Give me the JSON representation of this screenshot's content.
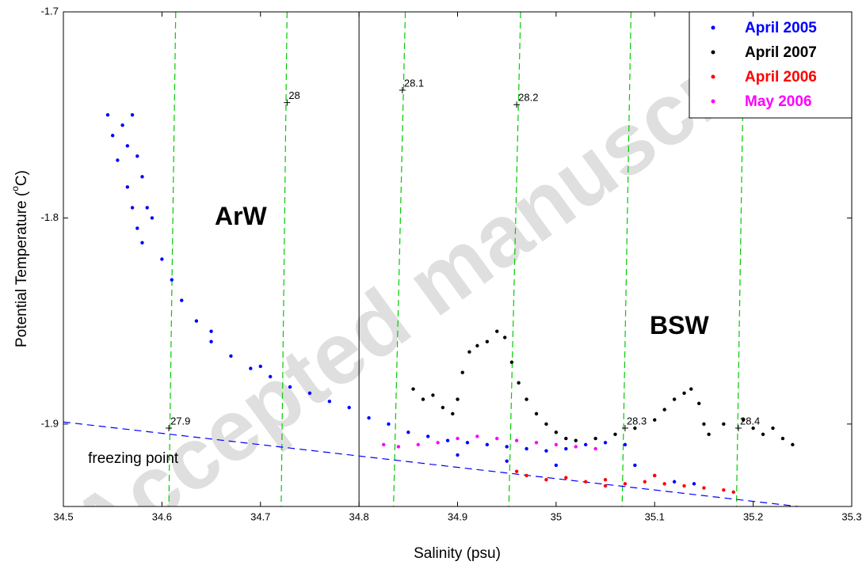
{
  "chart_data": {
    "type": "scatter",
    "xlabel": "Salinity (psu)",
    "ylabel": {
      "main": "Potential Temperature (",
      "sup": "o",
      "end": "C)"
    },
    "xlim": [
      34.5,
      35.3
    ],
    "xticks": [
      34.5,
      34.6,
      34.7,
      34.8,
      34.9,
      35,
      35.1,
      35.2,
      35.3
    ],
    "ylim": [
      -1.94,
      -1.7
    ],
    "yticks": [
      -1.7,
      -1.8,
      -1.9
    ],
    "legend": "upper right",
    "annotations": [
      {
        "text": "ArW",
        "x": 34.68,
        "y": -1.8
      },
      {
        "text": "BSW",
        "x": 35.125,
        "y": -1.853
      },
      {
        "text": "freezing point",
        "x": 34.525,
        "y": -1.917
      }
    ],
    "divider": {
      "x": 34.8,
      "color": "#000000"
    },
    "freezing_line": {
      "x": [
        34.5,
        35.3
      ],
      "y": [
        -1.899,
        -1.943
      ],
      "color": "#0000ff"
    },
    "isopycnals": [
      {
        "label": "27.9",
        "x_top": 34.614,
        "x_bottom": 34.607,
        "label_x": 34.607,
        "label_y": -1.902
      },
      {
        "label": "28",
        "x_top": 34.727,
        "x_bottom": 34.721,
        "label_x": 34.727,
        "label_y": -1.744
      },
      {
        "label": "28.1",
        "x_top": 34.847,
        "x_bottom": 34.835,
        "label_x": 34.844,
        "label_y": -1.738
      },
      {
        "label": "28.2",
        "x_top": 34.964,
        "x_bottom": 34.952,
        "label_x": 34.96,
        "label_y": -1.745
      },
      {
        "label": "28.3",
        "x_top": 35.076,
        "x_bottom": 35.067,
        "label_x": 35.07,
        "label_y": -1.902
      },
      {
        "label": "28.4",
        "x_top": 35.191,
        "x_bottom": 35.183,
        "label_x": 35.185,
        "label_y": -1.902
      }
    ],
    "isopycnal_color": "#00cc00",
    "watermark": "Accepted manuscript",
    "series": [
      {
        "name": "April 2005",
        "color": "#0000ff",
        "x": [
          34.545,
          34.55,
          34.555,
          34.56,
          34.565,
          34.57,
          34.575,
          34.58,
          34.565,
          34.57,
          34.575,
          34.58,
          34.585,
          34.59,
          34.6,
          34.61,
          34.62,
          34.635,
          34.65,
          34.67,
          34.69,
          34.71,
          34.73,
          34.75,
          34.77,
          34.79,
          34.81,
          34.83,
          34.85,
          34.87,
          34.89,
          34.91,
          34.93,
          34.95,
          34.97,
          34.99,
          35.01,
          35.03,
          35.05,
          35.07,
          35.08,
          35.1,
          35.12,
          35.14,
          34.9,
          34.95,
          35.0,
          34.7,
          34.65
        ],
        "values": [
          -1.75,
          -1.76,
          -1.772,
          -1.755,
          -1.765,
          -1.75,
          -1.77,
          -1.78,
          -1.785,
          -1.795,
          -1.805,
          -1.812,
          -1.795,
          -1.8,
          -1.82,
          -1.83,
          -1.84,
          -1.85,
          -1.86,
          -1.867,
          -1.873,
          -1.877,
          -1.882,
          -1.885,
          -1.889,
          -1.892,
          -1.897,
          -1.9,
          -1.904,
          -1.906,
          -1.908,
          -1.909,
          -1.91,
          -1.911,
          -1.912,
          -1.913,
          -1.912,
          -1.91,
          -1.909,
          -1.91,
          -1.92,
          -1.925,
          -1.928,
          -1.929,
          -1.915,
          -1.918,
          -1.92,
          -1.872,
          -1.855
        ]
      },
      {
        "name": "April 2007",
        "color": "#000000",
        "x": [
          34.855,
          34.865,
          34.875,
          34.885,
          34.895,
          34.9,
          34.905,
          34.912,
          34.92,
          34.93,
          34.94,
          34.948,
          34.955,
          34.962,
          34.97,
          34.98,
          34.99,
          35.0,
          35.01,
          35.02,
          35.04,
          35.06,
          35.08,
          35.1,
          35.11,
          35.12,
          35.13,
          35.137,
          35.145,
          35.15,
          35.155,
          35.17,
          35.19,
          35.2,
          35.21,
          35.22,
          35.23,
          35.24
        ],
        "values": [
          -1.883,
          -1.888,
          -1.886,
          -1.892,
          -1.895,
          -1.888,
          -1.875,
          -1.865,
          -1.862,
          -1.86,
          -1.855,
          -1.858,
          -1.87,
          -1.88,
          -1.888,
          -1.895,
          -1.9,
          -1.904,
          -1.907,
          -1.908,
          -1.907,
          -1.905,
          -1.902,
          -1.898,
          -1.893,
          -1.888,
          -1.885,
          -1.883,
          -1.89,
          -1.9,
          -1.905,
          -1.9,
          -1.898,
          -1.902,
          -1.905,
          -1.902,
          -1.907,
          -1.91
        ]
      },
      {
        "name": "April 2006",
        "color": "#ff0000",
        "x": [
          34.96,
          34.97,
          34.99,
          35.01,
          35.03,
          35.05,
          35.07,
          35.09,
          35.11,
          35.13,
          35.15,
          35.17,
          35.18,
          35.05,
          35.1
        ],
        "values": [
          -1.923,
          -1.925,
          -1.927,
          -1.926,
          -1.928,
          -1.927,
          -1.929,
          -1.928,
          -1.929,
          -1.93,
          -1.931,
          -1.932,
          -1.933,
          -1.93,
          -1.925
        ]
      },
      {
        "name": "May 2006",
        "color": "#ff00ff",
        "x": [
          34.825,
          34.84,
          34.86,
          34.88,
          34.9,
          34.92,
          34.94,
          34.96,
          34.98,
          35.0,
          35.02,
          35.04
        ],
        "values": [
          -1.91,
          -1.911,
          -1.91,
          -1.909,
          -1.907,
          -1.906,
          -1.907,
          -1.908,
          -1.909,
          -1.91,
          -1.911,
          -1.912
        ]
      }
    ]
  }
}
